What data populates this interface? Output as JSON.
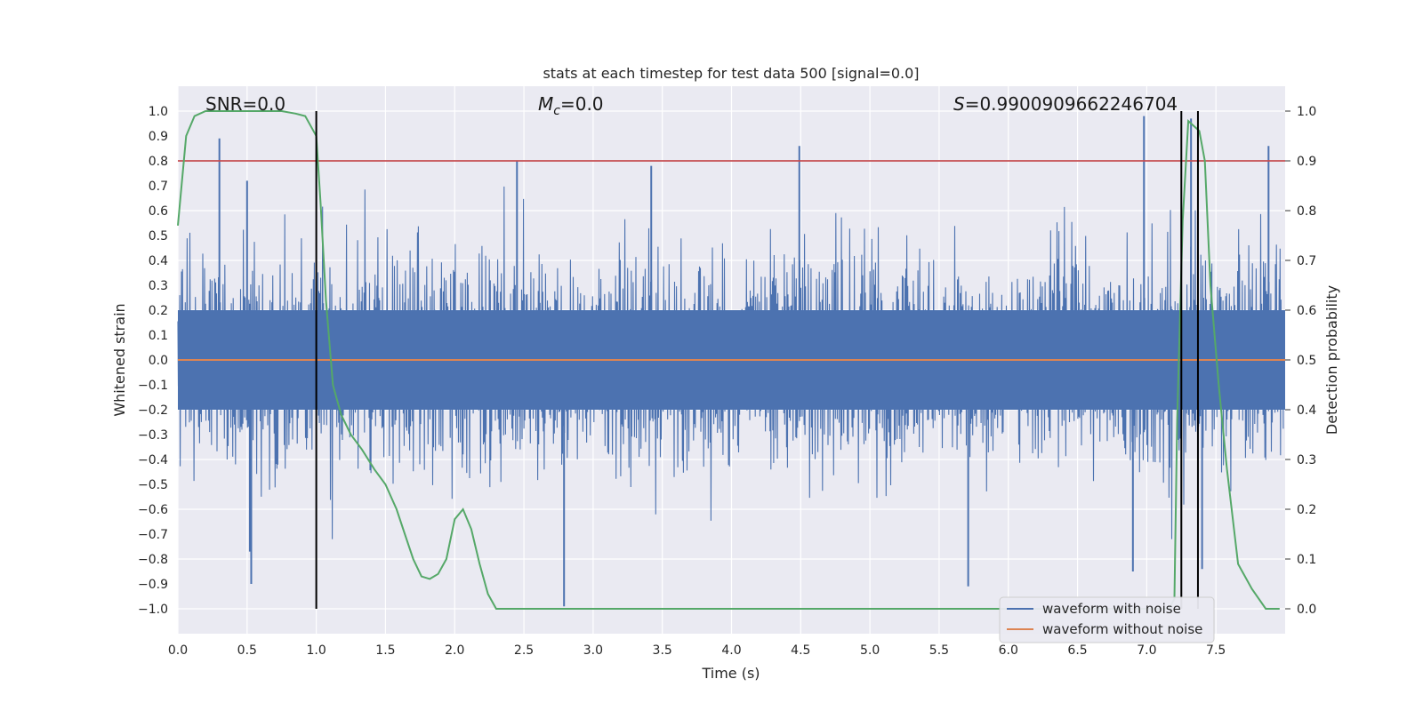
{
  "chart_data": {
    "type": "line",
    "title": "stats at each timestep for test data 500 [signal=0.0]",
    "xlabel": "Time (s)",
    "ylabel": "Whitened strain",
    "y2label": "Detection probability",
    "xlim": [
      0.0,
      8.0
    ],
    "ylim": [
      -1.1,
      1.1
    ],
    "y2lim": [
      -0.05,
      1.05
    ],
    "grid": true,
    "x_ticks": [
      "0.0",
      "0.5",
      "1.0",
      "1.5",
      "2.0",
      "2.5",
      "3.0",
      "3.5",
      "4.0",
      "4.5",
      "5.0",
      "5.5",
      "6.0",
      "6.5",
      "7.0",
      "7.5"
    ],
    "x_tick_values": [
      0.0,
      0.5,
      1.0,
      1.5,
      2.0,
      2.5,
      3.0,
      3.5,
      4.0,
      4.5,
      5.0,
      5.5,
      6.0,
      6.5,
      7.0,
      7.5
    ],
    "y_ticks": [
      "1.0",
      "0.9",
      "0.8",
      "0.7",
      "0.6",
      "0.5",
      "0.4",
      "0.3",
      "0.2",
      "0.1",
      "0.0",
      "−0.1",
      "−0.2",
      "−0.3",
      "−0.4",
      "−0.5",
      "−0.6",
      "−0.7",
      "−0.8",
      "−0.9",
      "−1.0"
    ],
    "y_tick_values": [
      1.0,
      0.9,
      0.8,
      0.7,
      0.6,
      0.5,
      0.4,
      0.3,
      0.2,
      0.1,
      0.0,
      -0.1,
      -0.2,
      -0.3,
      -0.4,
      -0.5,
      -0.6,
      -0.7,
      -0.8,
      -0.9,
      -1.0
    ],
    "y2_ticks": [
      "1.0",
      "0.9",
      "0.8",
      "0.7",
      "0.6",
      "0.5",
      "0.4",
      "0.3",
      "0.2",
      "0.1",
      "0.0"
    ],
    "y2_tick_values": [
      1.0,
      0.9,
      0.8,
      0.7,
      0.6,
      0.5,
      0.4,
      0.3,
      0.2,
      0.1,
      0.0
    ],
    "annotations": {
      "snr": "SNR=0.0",
      "mc_symbol": "M",
      "mc_sub": "c",
      "mc_value": "=0.0",
      "s_symbol": "S",
      "s_value": "=0.9900909662246704"
    },
    "threshold_y2": 0.9,
    "vertical_lines_x": [
      1.0,
      7.25,
      7.37
    ],
    "noise_peaks": [
      {
        "x": 0.3,
        "y": 0.89
      },
      {
        "x": 0.5,
        "y": 0.72
      },
      {
        "x": 2.45,
        "y": 0.8
      },
      {
        "x": 3.42,
        "y": 0.78
      },
      {
        "x": 4.49,
        "y": 0.86
      },
      {
        "x": 6.98,
        "y": 0.98
      },
      {
        "x": 7.32,
        "y": 0.97
      },
      {
        "x": 7.88,
        "y": 0.86
      }
    ],
    "noise_troughs": [
      {
        "x": 0.52,
        "y": -0.77
      },
      {
        "x": 0.53,
        "y": -0.9
      },
      {
        "x": 2.79,
        "y": -0.99
      },
      {
        "x": 5.71,
        "y": -0.91
      },
      {
        "x": 6.9,
        "y": -0.85
      },
      {
        "x": 7.4,
        "y": -0.84
      }
    ],
    "series": [
      {
        "name": "waveform with noise",
        "color": "#4c72b0"
      },
      {
        "name": "waveform without noise",
        "color": "#dd8452",
        "values": "0.0 constant"
      },
      {
        "name": "detection probability",
        "color": "#55a868",
        "axis": "right",
        "x": [
          0.0,
          0.06,
          0.12,
          0.2,
          0.3,
          0.45,
          0.6,
          0.75,
          0.85,
          0.92,
          0.96,
          1.0,
          1.03,
          1.07,
          1.12,
          1.18,
          1.25,
          1.33,
          1.42,
          1.5,
          1.58,
          1.64,
          1.7,
          1.76,
          1.82,
          1.88,
          1.94,
          2.0,
          2.06,
          2.12,
          2.18,
          2.24,
          2.3,
          2.5,
          3.0,
          4.0,
          5.0,
          6.0,
          7.0,
          7.1,
          7.16,
          7.2,
          7.22,
          7.26,
          7.3,
          7.34,
          7.38,
          7.42,
          7.46,
          7.52,
          7.58,
          7.66,
          7.76,
          7.86,
          7.96
        ],
        "values": [
          0.77,
          0.95,
          0.99,
          1.0,
          1.0,
          1.0,
          1.0,
          1.0,
          0.995,
          0.99,
          0.97,
          0.95,
          0.82,
          0.62,
          0.45,
          0.39,
          0.35,
          0.32,
          0.28,
          0.25,
          0.2,
          0.15,
          0.1,
          0.065,
          0.06,
          0.07,
          0.1,
          0.18,
          0.2,
          0.16,
          0.09,
          0.03,
          0.0,
          0.0,
          0.0,
          0.0,
          0.0,
          0.0,
          0.0,
          0.0,
          0.0,
          0.02,
          0.38,
          0.78,
          0.98,
          0.97,
          0.96,
          0.9,
          0.65,
          0.45,
          0.28,
          0.09,
          0.04,
          0.0,
          0.0
        ]
      }
    ],
    "legend": {
      "placement": "lower-right",
      "entries": [
        "waveform with noise",
        "waveform without noise"
      ]
    },
    "colors": {
      "background": "#eaeaf2",
      "grid": "#ffffff",
      "threshold": "#c44e52",
      "vline": "#000000"
    }
  }
}
